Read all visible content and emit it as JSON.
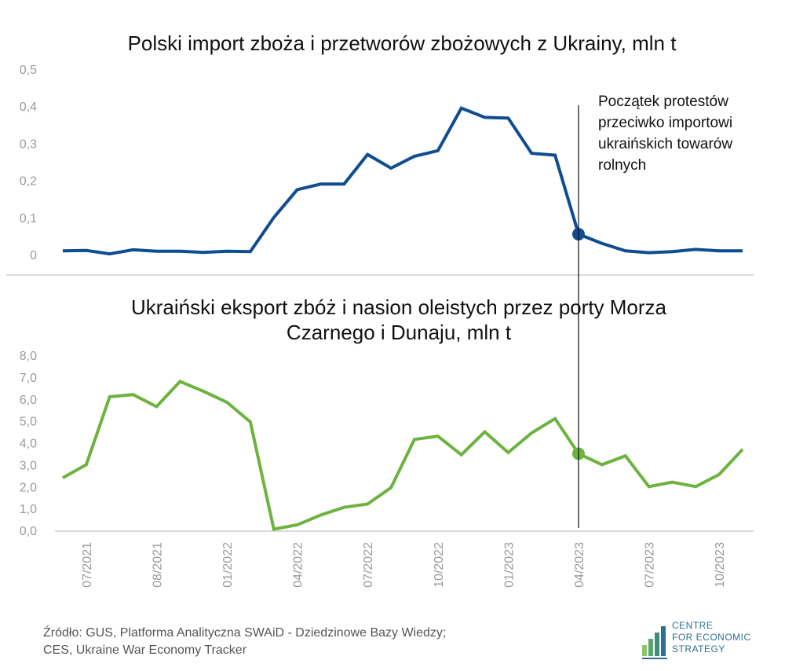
{
  "chart_data": [
    {
      "type": "line",
      "title": "Polski import zboża i przetworów zbożowych z Ukrainy, mln t",
      "ylim": [
        0,
        0.5
      ],
      "yticks": [
        "0",
        "0,1",
        "0,2",
        "0,3",
        "0,4",
        "0,5"
      ],
      "grid": false,
      "color": "#0f4c91",
      "series": [
        {
          "values": [
            0.01,
            0.011,
            0.002,
            0.013,
            0.009,
            0.009,
            0.006,
            0.009,
            0.008,
            0.1,
            0.175,
            0.19,
            0.19,
            0.27,
            0.233,
            0.265,
            0.28,
            0.395,
            0.37,
            0.368,
            0.273,
            0.268,
            0.055,
            0.03,
            0.01,
            0.005,
            0.008,
            0.014,
            0.01,
            0.01
          ]
        }
      ],
      "highlight_index": 22
    },
    {
      "type": "line",
      "title_lines": [
        "Ukraiński eksport zbóż i nasion oleistych przez porty Morza",
        "Czarnego i Dunaju, mln t"
      ],
      "ylim": [
        0,
        8
      ],
      "yticks": [
        "0,0",
        "1,0",
        "2,0",
        "3,0",
        "4,0",
        "5,0",
        "6,0",
        "7,0",
        "8,0"
      ],
      "grid": false,
      "color": "#6db33f",
      "series": [
        {
          "values": [
            2.4,
            3.0,
            6.1,
            6.2,
            5.65,
            6.8,
            6.35,
            5.85,
            4.95,
            0.05,
            0.25,
            0.7,
            1.05,
            1.2,
            1.95,
            4.15,
            4.3,
            3.45,
            4.5,
            3.55,
            4.45,
            5.1,
            3.5,
            3.0,
            3.4,
            2.0,
            2.2,
            2.0,
            2.55,
            3.7
          ]
        }
      ],
      "highlight_index": 22,
      "xticks": [
        {
          "index": 1,
          "label": "07/2021"
        },
        {
          "index": 4,
          "label": "08/2021"
        },
        {
          "index": 7,
          "label": "01/2022"
        },
        {
          "index": 10,
          "label": "04/2022"
        },
        {
          "index": 13,
          "label": "07/2022"
        },
        {
          "index": 16,
          "label": "10/2022"
        },
        {
          "index": 19,
          "label": "01/2023"
        },
        {
          "index": 22,
          "label": "04/2023"
        },
        {
          "index": 25,
          "label": "07/2023"
        },
        {
          "index": 28,
          "label": "10/2023"
        }
      ]
    }
  ],
  "annotation": [
    "Początek protestów",
    "przeciwko importowi",
    "ukraińskich towarów",
    "rolnych"
  ],
  "source": [
    "Źródło: GUS, Platforma Analityczna SWAiD - Dziedzinowe Bazy Wiedzy;",
    "CES, Ukraine War Economy Tracker"
  ],
  "logo": [
    "CENTRE",
    "FOR ECONOMIC",
    "STRATEGY"
  ]
}
